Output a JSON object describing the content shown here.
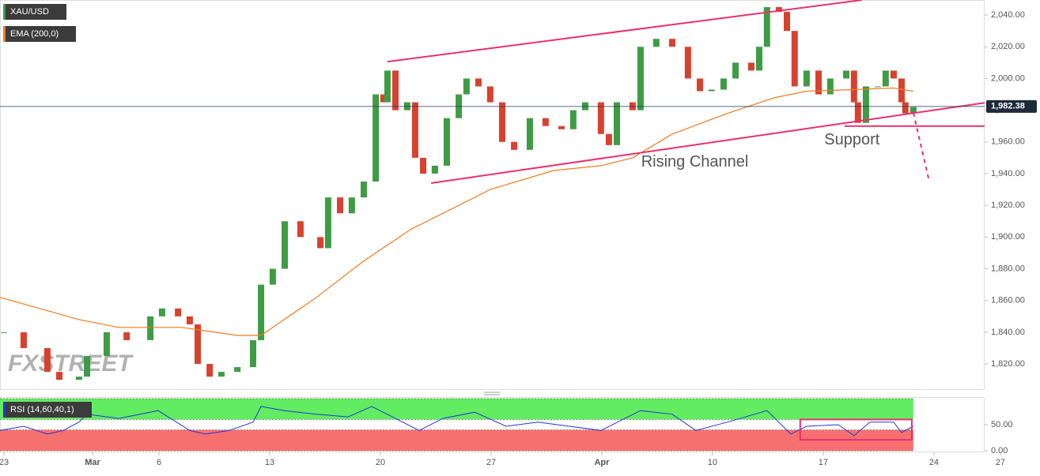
{
  "chart_data": [
    {
      "type": "candlestick",
      "watermark": "FXSTREET",
      "xlim": [
        -0.18,
        44.29
      ],
      "xticks": [
        {
          "value": 0,
          "label": "23"
        },
        {
          "value": 4,
          "label": "Mar"
        },
        {
          "value": 7,
          "label": "6"
        },
        {
          "value": 12,
          "label": "13"
        },
        {
          "value": 17,
          "label": "20"
        },
        {
          "value": 22,
          "label": "27"
        },
        {
          "value": 27,
          "label": "Apr"
        },
        {
          "value": 32,
          "label": "10"
        },
        {
          "value": 37,
          "label": "17"
        },
        {
          "value": 42,
          "label": "24"
        },
        {
          "value": 45,
          "label": "27"
        }
      ],
      "ylim": [
        1803.6,
        2049.5
      ],
      "yticks": [
        {
          "value": 1820,
          "label": "1,820.00"
        },
        {
          "value": 1840,
          "label": "1,840.00"
        },
        {
          "value": 1860,
          "label": "1,860.00"
        },
        {
          "value": 1880,
          "label": "1,880.00"
        },
        {
          "value": 1900,
          "label": "1,900.00"
        },
        {
          "value": 1920,
          "label": "1,920.00"
        },
        {
          "value": 1940,
          "label": "1,940.00"
        },
        {
          "value": 1960,
          "label": "1,960.00"
        },
        {
          "value": 1980,
          "label": "1,980.00"
        },
        {
          "value": 2000,
          "label": "2,000.00"
        },
        {
          "value": 2020,
          "label": "2,020.00"
        },
        {
          "value": 2040,
          "label": "2,040.00"
        }
      ],
      "last_price": {
        "value": 1982.38,
        "label": "1,982.38"
      },
      "series": [
        {
          "name": "XAU/USD",
          "type": "candlestick",
          "up_color": "#3e9c45",
          "down_color": "#d9412f",
          "x": [
            0,
            0.89,
            1.96,
            2.5,
            3.39,
            3.75,
            4.64,
            5.54,
            6.61,
            7.14,
            7.86,
            8.39,
            8.75,
            9.29,
            9.82,
            10.54,
            11.25,
            11.61,
            12.14,
            12.68,
            13.39,
            14.29,
            14.64,
            15.18,
            15.71,
            16.25,
            16.79,
            17.14,
            17.32,
            17.68,
            18.21,
            18.57,
            18.93,
            19.46,
            20,
            20.54,
            20.89,
            21.43,
            21.96,
            22.5,
            23.04,
            23.75,
            24.46,
            25.18,
            25.71,
            26.25,
            26.96,
            27.32,
            27.68,
            28.39,
            28.75,
            29.46,
            30.18,
            30.89,
            31.43,
            31.96,
            32.5,
            33.04,
            33.75,
            34.11,
            34.46,
            35,
            35.36,
            35.71,
            36.25,
            36.79,
            37.32,
            38.04,
            38.39,
            38.57,
            38.93,
            39.46,
            39.82,
            40.18,
            40.54,
            40.71,
            41.07
          ],
          "values": [
            1840,
            1830,
            1815,
            1810,
            1812,
            1825,
            1840,
            1835,
            1850,
            1855,
            1850,
            1845,
            1820,
            1812,
            1815,
            1818,
            1835,
            1870,
            1880,
            1910,
            1900,
            1893,
            1925,
            1915,
            1925,
            1935,
            1990,
            1985,
            2005,
            1980,
            1985,
            1950,
            1940,
            1945,
            1975,
            1990,
            2000,
            1995,
            1985,
            1960,
            1955,
            1975,
            1970,
            1968,
            1980,
            1985,
            1965,
            1958,
            1985,
            1980,
            2020,
            2025,
            2020,
            2000,
            1992,
            1993,
            2000,
            2010,
            2005,
            2020,
            2045,
            2042,
            2030,
            1995,
            2005,
            1990,
            2000,
            2005,
            1985,
            1972,
            1995,
            1995,
            2005,
            2000,
            1985,
            1978,
            1982
          ]
        },
        {
          "name": "EMA (200,0)",
          "type": "line",
          "color": "#f07b1f",
          "x": [
            -0.18,
            3.39,
            5.18,
            8.04,
            10.54,
            11.61,
            14.11,
            16.25,
            18.39,
            20.54,
            21.96,
            24.82,
            26.96,
            28.39,
            30.18,
            32.68,
            34.82,
            36.25,
            38.39,
            40.18,
            41.07
          ],
          "values": [
            1862,
            1848,
            1843,
            1843,
            1838,
            1838,
            1862,
            1885,
            1905,
            1920,
            1930,
            1942,
            1945,
            1950,
            1965,
            1978,
            1988,
            1992,
            1993,
            1994,
            1992
          ]
        }
      ],
      "lines": [
        {
          "color": "#e8306e",
          "x": [
            17.32,
            38.75
          ],
          "values": [
            2010.6,
            2049.5
          ]
        },
        {
          "color": "#e8306e",
          "x": [
            19.29,
            44.29
          ],
          "values": [
            1934,
            1984.7
          ]
        },
        {
          "color": "#e8306e",
          "x": [
            37.96,
            44.29
          ],
          "values": [
            1970,
            1970
          ]
        },
        {
          "color": "#e8306e",
          "dashed": true,
          "x": [
            41.07,
            41.79
          ],
          "values": [
            1978.3,
            1935
          ]
        }
      ],
      "annotations": [
        {
          "text": "Rising Channel",
          "x": 31.2,
          "y": 1947,
          "color": "#e8306e"
        },
        {
          "text": "Support",
          "x": 38.3,
          "y": 1961,
          "color": "#e8306e"
        }
      ]
    },
    {
      "type": "line",
      "xlim": [
        -0.18,
        44.29
      ],
      "ylim": [
        -3,
        103
      ],
      "yticks": [
        {
          "value": 0,
          "label": "0.00"
        },
        {
          "value": 50,
          "label": "50.00"
        }
      ],
      "bands": [
        {
          "from": 60,
          "to": 100,
          "color": "#62ec62"
        },
        {
          "from": 0,
          "to": 40,
          "color": "#f77070"
        }
      ],
      "bands_end": 41.07,
      "highlight": {
        "x": [
          35.96,
          41
        ],
        "values": [
          21,
          60
        ],
        "color": "#e8306e"
      },
      "series": [
        {
          "name": "RSI (14,60,40,1)",
          "color": "#2436d6",
          "x": [
            -0.18,
            0.89,
            1.96,
            2.68,
            3.39,
            3.75,
            5.18,
            6.96,
            8.39,
            9.11,
            10.18,
            11.25,
            11.61,
            12.68,
            14.11,
            15.54,
            16.61,
            17.68,
            18.75,
            19.82,
            21.25,
            22.68,
            24.11,
            25.54,
            26.96,
            28.04,
            28.75,
            30.18,
            31.25,
            32.68,
            34.46,
            35.54,
            36.25,
            37.68,
            38.39,
            39.11,
            40.18,
            40.54,
            41.07
          ],
          "values": [
            39,
            47,
            32,
            39,
            55,
            70,
            62,
            77,
            39,
            32,
            39,
            55,
            85,
            77,
            70,
            65,
            85,
            62,
            39,
            62,
            74,
            47,
            55,
            47,
            39,
            62,
            77,
            70,
            39,
            55,
            77,
            32,
            47,
            50,
            29,
            55,
            55,
            35,
            47
          ]
        }
      ]
    }
  ]
}
